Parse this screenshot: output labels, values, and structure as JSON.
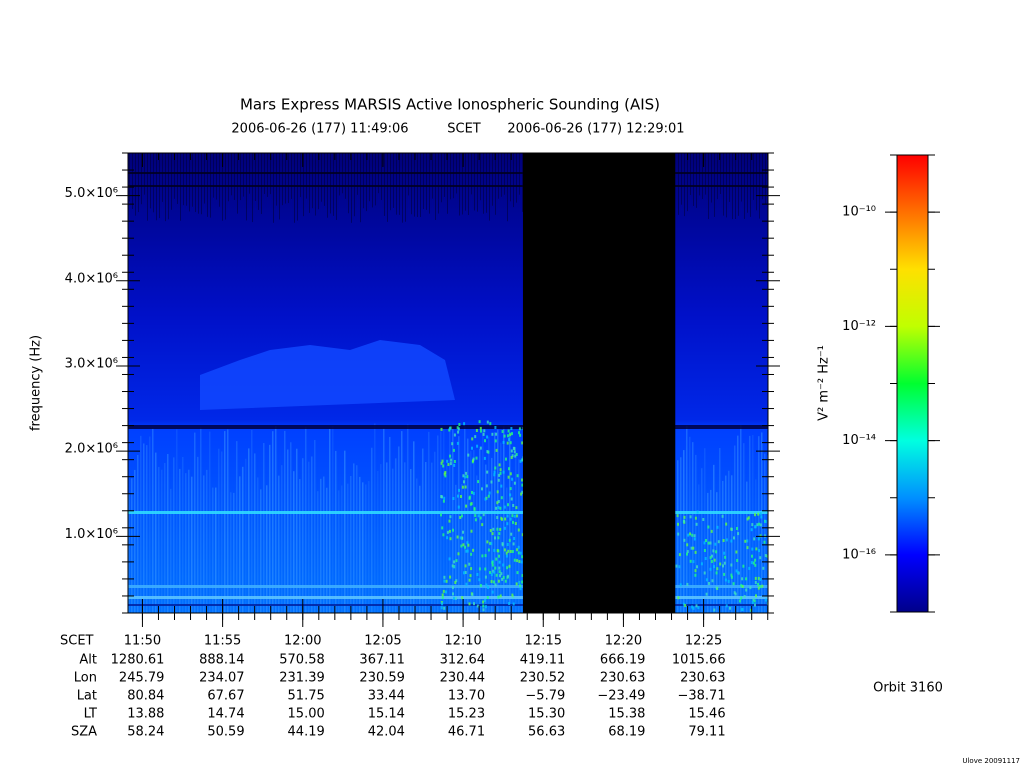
{
  "chart_data": {
    "type": "spectrogram",
    "title": "Mars Express MARSIS Active Ionospheric Sounding (AIS)",
    "time_start": "2006-06-26 (177) 11:49:06",
    "time_label": "SCET",
    "time_end": "2006-06-26 (177) 12:29:01",
    "y_label": "frequency (Hz)",
    "ylim": [
      100000,
      5500000
    ],
    "yticks": [
      {
        "value": 1000000,
        "label": "1.0×10⁶"
      },
      {
        "value": 2000000,
        "label": "2.0×10⁶"
      },
      {
        "value": 3000000,
        "label": "3.0×10⁶"
      },
      {
        "value": 4000000,
        "label": "4.0×10⁶"
      },
      {
        "value": 5000000,
        "label": "5.0×10⁶"
      }
    ],
    "xticks": [
      "11:50",
      "11:55",
      "12:00",
      "12:05",
      "12:10",
      "12:15",
      "12:20",
      "12:25"
    ],
    "data_gap": [
      "12:13:44",
      "12:23:14"
    ],
    "colorbar": {
      "label": "V² m⁻² Hz⁻¹",
      "log": true,
      "zlim": [
        1e-17,
        1e-09
      ],
      "zticks": [
        {
          "value": 1e-10,
          "label": "10⁻¹⁰"
        },
        {
          "value": 1e-12,
          "label": "10⁻¹²"
        },
        {
          "value": 1e-14,
          "label": "10⁻¹⁴"
        },
        {
          "value": 1e-16,
          "label": "10⁻¹⁶"
        }
      ],
      "colors": [
        "#00008a",
        "#0000ff",
        "#0090ff",
        "#00ffe0",
        "#00ff30",
        "#c0ff00",
        "#ffe000",
        "#ff7000",
        "#ff0000"
      ]
    },
    "ephemeris": {
      "header": "SCET",
      "rows": [
        {
          "label": "Alt",
          "values": [
            "1280.61",
            "888.14",
            "570.58",
            "367.11",
            "312.64",
            "419.11",
            "666.19",
            "1015.66"
          ]
        },
        {
          "label": "Lon",
          "values": [
            "245.79",
            "234.07",
            "231.39",
            "230.59",
            "230.44",
            "230.52",
            "230.63",
            "230.63"
          ]
        },
        {
          "label": "Lat",
          "values": [
            "80.84",
            "67.67",
            "51.75",
            "33.44",
            "13.70",
            "−5.79",
            "−23.49",
            "−38.71"
          ]
        },
        {
          "label": "LT",
          "values": [
            "13.88",
            "14.74",
            "15.00",
            "15.14",
            "15.23",
            "15.30",
            "15.38",
            "15.46"
          ]
        },
        {
          "label": "SZA",
          "values": [
            "58.24",
            "50.59",
            "44.19",
            "42.04",
            "46.71",
            "56.63",
            "68.19",
            "79.11"
          ]
        }
      ]
    }
  },
  "orbit": "Orbit 3160",
  "credit": "Ulove 20091117"
}
